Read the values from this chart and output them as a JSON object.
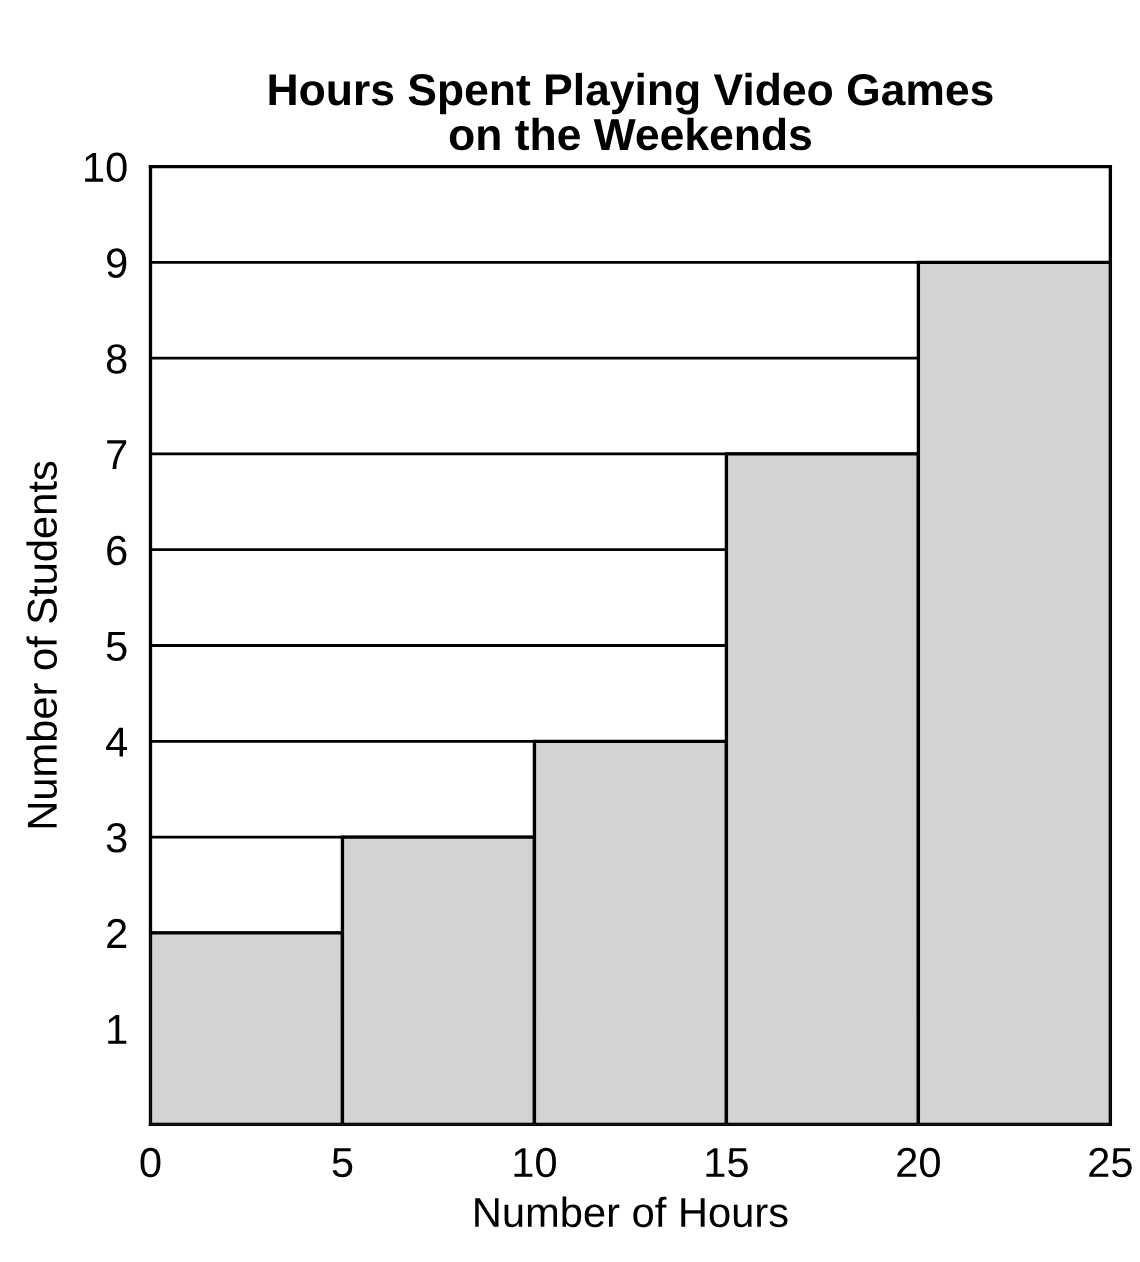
{
  "chart_data": {
    "type": "histogram",
    "title": "Hours Spent Playing Video Games\non the Weekends",
    "xlabel": "Number of Hours",
    "ylabel": "Number of Students",
    "bins": [
      0,
      5,
      10,
      15,
      20,
      25
    ],
    "values": [
      2,
      3,
      4,
      7,
      9
    ],
    "color": "#d3d3d4",
    "xlim": [
      0,
      25
    ],
    "xticks": [
      0,
      5,
      10,
      15,
      20,
      25
    ],
    "ylim": [
      0,
      10
    ],
    "yticks": [
      1,
      2,
      3,
      4,
      5,
      6,
      7,
      8,
      9,
      10
    ],
    "grid": "y",
    "legend": false
  }
}
